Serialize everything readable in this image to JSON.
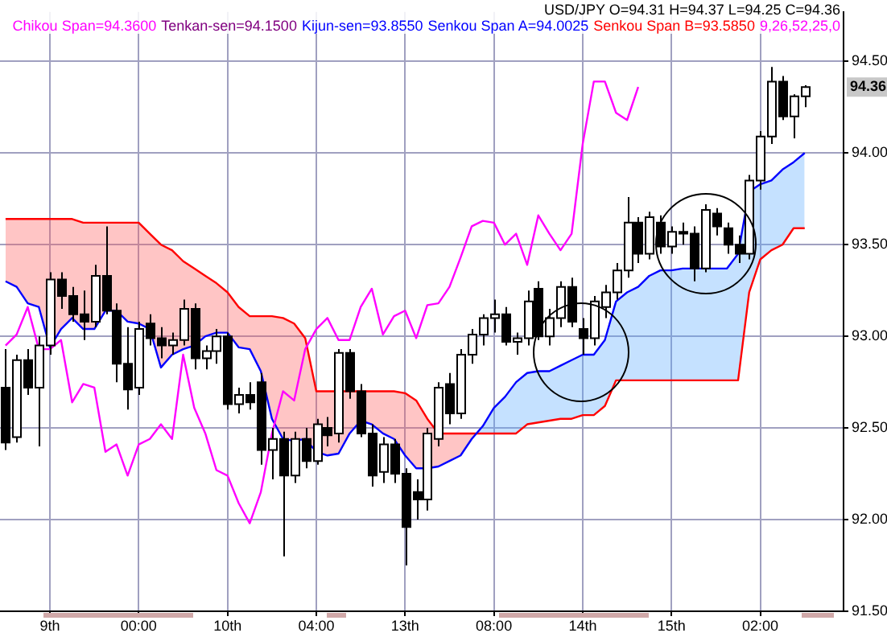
{
  "chart_data": {
    "type": "candlestick",
    "title": "USD/JPY O=94.31 H=94.37 L=94.25 C=94.36",
    "annotations": [
      "Tenkan-sen=94.1500",
      "Kijun-sen=93.8550",
      "9,26,52,25,0",
      {
        "text": "94.36",
        "y": 94.36
      }
    ],
    "categories": [
      null,
      null,
      null,
      null,
      "9th",
      null,
      null,
      null,
      null,
      null,
      null,
      null,
      "00:00",
      null,
      null,
      null,
      null,
      null,
      null,
      null,
      "10th",
      null,
      null,
      null,
      null,
      null,
      null,
      null,
      "04:00",
      null,
      null,
      null,
      null,
      null,
      null,
      null,
      "13th",
      null,
      null,
      null,
      null,
      null,
      null,
      null,
      "08:00",
      null,
      null,
      null,
      null,
      null,
      null,
      null,
      "14th",
      null,
      null,
      null,
      null,
      null,
      null,
      null,
      "15th",
      null,
      null,
      null,
      null,
      null,
      null,
      null,
      "02:00",
      null,
      null,
      null,
      null,
      null,
      null,
      null
    ],
    "ohlc": [
      [
        92.72,
        92.93,
        92.38,
        92.42
      ],
      [
        92.45,
        92.9,
        92.42,
        92.87
      ],
      [
        92.87,
        92.93,
        92.68,
        92.72
      ],
      [
        92.72,
        93.0,
        92.4,
        92.95
      ],
      [
        92.95,
        93.35,
        92.9,
        93.31
      ],
      [
        93.31,
        93.35,
        93.15,
        93.22
      ],
      [
        93.22,
        93.27,
        93.08,
        93.12
      ],
      [
        93.12,
        93.25,
        92.98,
        93.08
      ],
      [
        93.08,
        93.39,
        93.05,
        93.33
      ],
      [
        93.33,
        93.6,
        93.12,
        93.14
      ],
      [
        93.14,
        93.18,
        92.75,
        92.85
      ],
      [
        92.85,
        93.05,
        92.6,
        92.71
      ],
      [
        92.72,
        93.08,
        92.68,
        93.04
      ],
      [
        93.07,
        93.12,
        92.95,
        92.99
      ],
      [
        92.99,
        93.05,
        92.88,
        92.95
      ],
      [
        92.95,
        93.02,
        92.9,
        92.98
      ],
      [
        92.98,
        93.2,
        92.95,
        93.15
      ],
      [
        93.15,
        93.18,
        92.82,
        92.88
      ],
      [
        92.88,
        92.95,
        92.82,
        92.92
      ],
      [
        92.92,
        93.04,
        92.85,
        93.0
      ],
      [
        93.0,
        93.02,
        92.6,
        92.63
      ],
      [
        92.63,
        92.72,
        92.58,
        92.68
      ],
      [
        92.68,
        92.75,
        92.6,
        92.64
      ],
      [
        92.75,
        92.8,
        92.3,
        92.38
      ],
      [
        92.38,
        92.5,
        92.22,
        92.44
      ],
      [
        92.44,
        92.48,
        91.8,
        92.24
      ],
      [
        92.24,
        92.48,
        92.2,
        92.44
      ],
      [
        92.44,
        92.5,
        92.28,
        92.32
      ],
      [
        92.32,
        92.55,
        92.3,
        92.52
      ],
      [
        92.5,
        92.56,
        92.4,
        92.46
      ],
      [
        92.47,
        92.93,
        92.42,
        92.91
      ],
      [
        92.91,
        92.93,
        92.66,
        92.7
      ],
      [
        92.7,
        92.74,
        92.45,
        92.47
      ],
      [
        92.47,
        92.52,
        92.18,
        92.24
      ],
      [
        92.26,
        92.45,
        92.2,
        92.41
      ],
      [
        92.41,
        92.44,
        92.2,
        92.25
      ],
      [
        92.25,
        92.28,
        91.75,
        91.96
      ],
      [
        92.15,
        92.22,
        92.0,
        92.11
      ],
      [
        92.11,
        92.5,
        92.05,
        92.47
      ],
      [
        92.44,
        92.75,
        92.4,
        92.72
      ],
      [
        92.74,
        92.8,
        92.52,
        92.58
      ],
      [
        92.58,
        92.93,
        92.55,
        92.9
      ],
      [
        92.9,
        93.04,
        92.85,
        93.01
      ],
      [
        93.01,
        93.12,
        92.95,
        93.1
      ],
      [
        93.1,
        93.2,
        93.02,
        93.12
      ],
      [
        93.12,
        93.16,
        92.95,
        92.97
      ],
      [
        92.97,
        93.02,
        92.9,
        92.99
      ],
      [
        92.99,
        93.25,
        92.95,
        93.19
      ],
      [
        93.26,
        93.3,
        92.98,
        93.0
      ],
      [
        93.0,
        93.15,
        92.95,
        93.1
      ],
      [
        93.1,
        93.3,
        93.05,
        93.27
      ],
      [
        93.27,
        93.32,
        93.05,
        93.08
      ],
      [
        93.04,
        93.1,
        92.9,
        92.99
      ],
      [
        92.99,
        93.22,
        92.95,
        93.19
      ],
      [
        93.16,
        93.28,
        93.1,
        93.24
      ],
      [
        93.24,
        93.4,
        93.2,
        93.36
      ],
      [
        93.36,
        93.76,
        93.32,
        93.62
      ],
      [
        93.62,
        93.65,
        93.4,
        93.45
      ],
      [
        93.45,
        93.68,
        93.42,
        93.65
      ],
      [
        93.62,
        93.66,
        93.45,
        93.49
      ],
      [
        93.49,
        93.6,
        93.45,
        93.57
      ],
      [
        93.57,
        93.62,
        93.5,
        93.56
      ],
      [
        93.56,
        93.6,
        93.3,
        93.37
      ],
      [
        93.37,
        93.72,
        93.35,
        93.69
      ],
      [
        93.67,
        93.7,
        93.55,
        93.6
      ],
      [
        93.59,
        93.62,
        93.45,
        93.5
      ],
      [
        93.5,
        93.55,
        93.4,
        93.45
      ],
      [
        93.45,
        93.88,
        93.42,
        93.85
      ],
      [
        93.85,
        94.12,
        93.8,
        94.09
      ],
      [
        94.09,
        94.47,
        94.05,
        94.39
      ],
      [
        94.39,
        94.42,
        94.18,
        94.2
      ],
      [
        94.2,
        94.32,
        94.08,
        94.31
      ],
      [
        94.31,
        94.37,
        94.25,
        94.36
      ],
      null,
      null,
      null
    ],
    "series": [
      {
        "name": "Chikou Span=94.3600",
        "type": "line",
        "color": "#ff00ff",
        "values": [
          92.95,
          93.01,
          93.16,
          92.93,
          92.93,
          92.98,
          92.64,
          92.74,
          92.72,
          92.37,
          92.41,
          92.24,
          92.41,
          92.44,
          92.52,
          92.44,
          92.9,
          92.61,
          92.47,
          92.27,
          92.24,
          92.09,
          91.98,
          92.15,
          92.47,
          92.7,
          92.65,
          92.93,
          93.04,
          93.1,
          92.98,
          92.98,
          93.16,
          93.26,
          93.01,
          93.11,
          93.14,
          92.99,
          93.17,
          93.18,
          93.27,
          93.43,
          93.6,
          93.63,
          93.62,
          93.5,
          93.56,
          93.39,
          93.66,
          93.56,
          93.47,
          93.56,
          94.05,
          94.39,
          94.39,
          94.22,
          94.18,
          94.36,
          null,
          null,
          null,
          null,
          null,
          null,
          null,
          null,
          null,
          null,
          null,
          null,
          null,
          null,
          null,
          null,
          null,
          null
        ]
      },
      {
        "name": "Senkou Span A=94.0025",
        "type": "line",
        "color": "#0000ff",
        "values": [
          93.3,
          93.27,
          93.18,
          93.16,
          92.94,
          93.04,
          93.1,
          93.04,
          93.04,
          93.14,
          93.14,
          93.08,
          93.07,
          93.04,
          92.83,
          92.9,
          92.93,
          92.95,
          93.0,
          93.02,
          93.02,
          92.94,
          92.93,
          92.81,
          92.55,
          92.44,
          92.43,
          92.44,
          92.37,
          92.35,
          92.36,
          92.47,
          92.54,
          92.52,
          92.47,
          92.44,
          92.35,
          92.28,
          92.28,
          92.29,
          92.32,
          92.35,
          92.44,
          92.51,
          92.61,
          92.67,
          92.75,
          92.8,
          92.81,
          92.81,
          92.84,
          92.87,
          92.9,
          92.9,
          92.98,
          93.19,
          93.24,
          93.27,
          93.33,
          93.36,
          93.36,
          93.37,
          93.37,
          93.37,
          93.37,
          93.37,
          93.45,
          93.79,
          93.83,
          93.85,
          93.91,
          93.95,
          94.0,
          null,
          null,
          null
        ]
      },
      {
        "name": "Senkou Span B=93.5850",
        "type": "line",
        "color": "#ff0000",
        "values": [
          93.64,
          93.64,
          93.64,
          93.64,
          93.64,
          93.64,
          93.64,
          93.62,
          93.62,
          93.62,
          93.62,
          93.62,
          93.62,
          93.56,
          93.5,
          93.47,
          93.41,
          93.37,
          93.33,
          93.29,
          93.24,
          93.16,
          93.11,
          93.11,
          93.11,
          93.1,
          93.07,
          92.99,
          92.7,
          92.7,
          92.7,
          92.7,
          92.7,
          92.7,
          92.7,
          92.7,
          92.69,
          92.65,
          92.55,
          92.47,
          92.47,
          92.47,
          92.47,
          92.47,
          92.47,
          92.47,
          92.47,
          92.52,
          92.53,
          92.54,
          92.55,
          92.55,
          92.57,
          92.57,
          92.62,
          92.76,
          92.76,
          92.76,
          92.76,
          92.76,
          92.76,
          92.76,
          92.76,
          92.76,
          92.76,
          92.76,
          92.76,
          93.24,
          93.42,
          93.47,
          93.5,
          93.59,
          93.59,
          null,
          null,
          null
        ]
      }
    ],
    "ylim": [
      91.5,
      94.77
    ],
    "yticks": [
      {
        "value": 91.5,
        "label": "91.50"
      },
      {
        "value": 92,
        "label": "92.00"
      },
      {
        "value": 92.5,
        "label": "92.50"
      },
      {
        "value": 93,
        "label": "93.00"
      },
      {
        "value": 93.5,
        "label": "93.50"
      },
      {
        "value": 94,
        "label": "94.00"
      },
      {
        "value": 94.5,
        "label": "94.50"
      }
    ],
    "grid": true,
    "legend": "top right",
    "line_style": "solid"
  }
}
